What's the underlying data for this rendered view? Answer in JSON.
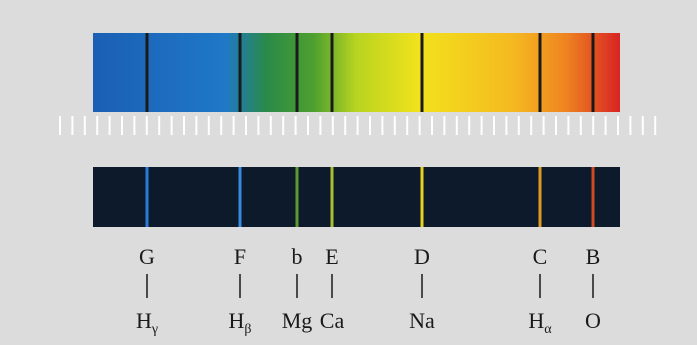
{
  "lines": [
    {
      "letter": "G",
      "element": "H",
      "subscript": "γ"
    },
    {
      "letter": "F",
      "element": "H",
      "subscript": "β"
    },
    {
      "letter": "b",
      "element": "Mg"
    },
    {
      "letter": "E",
      "element": "Ca"
    },
    {
      "letter": "D",
      "element": "Na"
    },
    {
      "letter": "C",
      "element": "H",
      "subscript": "α"
    },
    {
      "letter": "B",
      "element": "O"
    }
  ]
}
